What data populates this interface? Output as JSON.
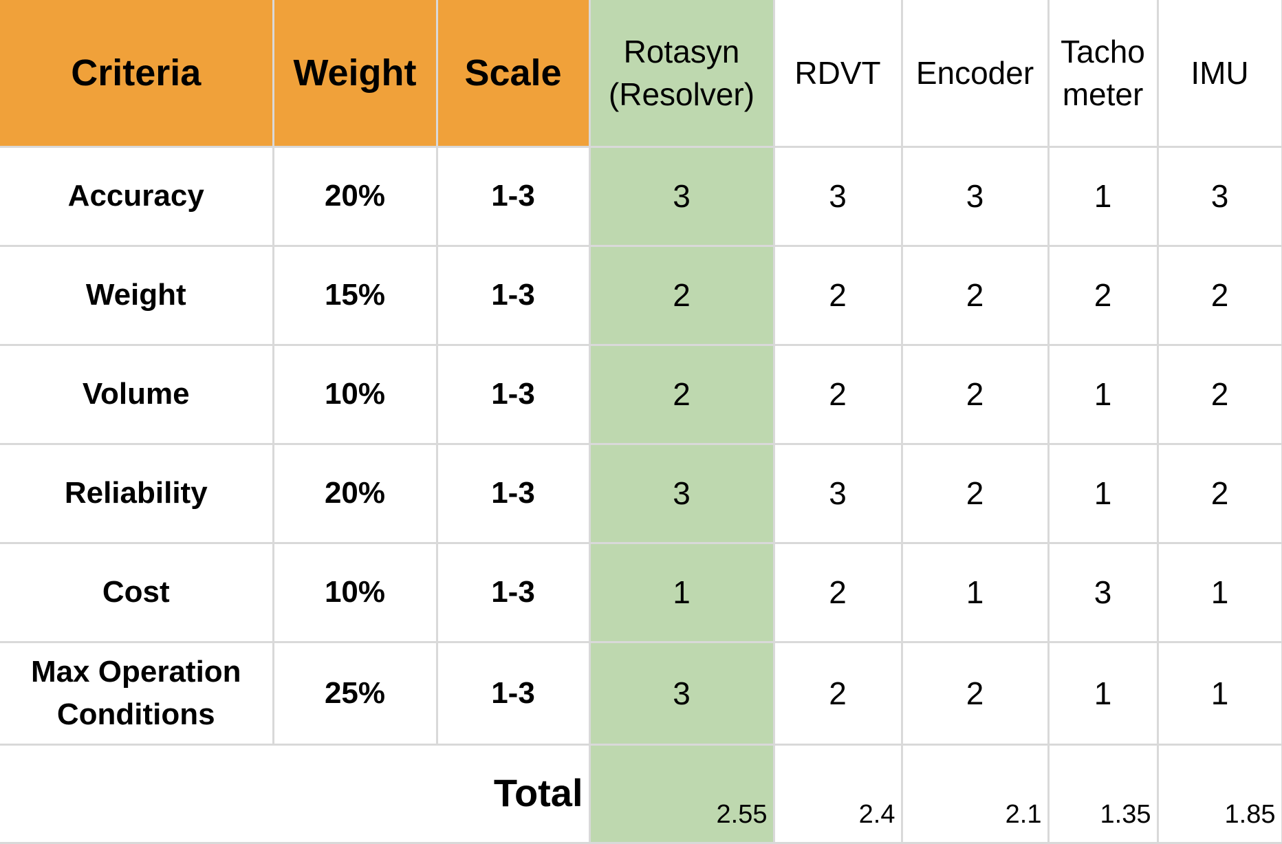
{
  "headers": {
    "criteria": "Criteria",
    "weight": "Weight",
    "scale": "Scale",
    "options": [
      {
        "line1": "Rotasyn",
        "line2": "(Resolver)"
      },
      {
        "line1": "RDVT",
        "line2": ""
      },
      {
        "line1": "Encoder",
        "line2": ""
      },
      {
        "line1": "Tacho",
        "line2": "meter"
      },
      {
        "line1": "IMU",
        "line2": ""
      }
    ]
  },
  "rows": [
    {
      "criteria": "Accuracy",
      "criteria2": "",
      "weight": "20%",
      "scale": "1-3",
      "scores": [
        "3",
        "3",
        "3",
        "1",
        "3"
      ]
    },
    {
      "criteria": "Weight",
      "criteria2": "",
      "weight": "15%",
      "scale": "1-3",
      "scores": [
        "2",
        "2",
        "2",
        "2",
        "2"
      ]
    },
    {
      "criteria": "Volume",
      "criteria2": "",
      "weight": "10%",
      "scale": "1-3",
      "scores": [
        "2",
        "2",
        "2",
        "1",
        "2"
      ]
    },
    {
      "criteria": "Reliability",
      "criteria2": "",
      "weight": "20%",
      "scale": "1-3",
      "scores": [
        "3",
        "3",
        "2",
        "1",
        "2"
      ]
    },
    {
      "criteria": "Cost",
      "criteria2": "",
      "weight": "10%",
      "scale": "1-3",
      "scores": [
        "1",
        "2",
        "1",
        "3",
        "1"
      ]
    },
    {
      "criteria": "Max Operation",
      "criteria2": "Conditions",
      "weight": "25%",
      "scale": "1-3",
      "scores": [
        "3",
        "2",
        "2",
        "1",
        "1"
      ]
    }
  ],
  "total": {
    "label": "Total",
    "values": [
      "2.55",
      "2.4",
      "2.1",
      "1.35",
      "1.85"
    ]
  },
  "colors": {
    "header_orange": "#f0a13a",
    "highlight_green": "#bed8af",
    "grid": "#d9d9d9"
  }
}
